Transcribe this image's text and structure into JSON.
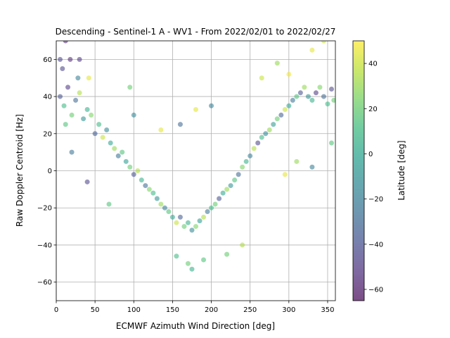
{
  "chart_data": {
    "type": "scatter",
    "title": "Descending - Sentinel-1 A - WV1 - From 2022/02/01 to 2022/02/27",
    "xlabel": "ECMWF Azimuth Wind Direction [deg]",
    "ylabel": "Raw Doppler Centroid [Hz]",
    "xlim": [
      0,
      360
    ],
    "ylim": [
      -70,
      70
    ],
    "xticks": [
      0,
      50,
      100,
      150,
      200,
      250,
      300,
      350
    ],
    "yticks": [
      -60,
      -40,
      -20,
      0,
      20,
      40,
      60
    ],
    "grid": true,
    "marker_alpha": 0.55,
    "colormap": "viridis",
    "colormap_stops": [
      "#440154",
      "#482878",
      "#3e4989",
      "#31688e",
      "#26828e",
      "#1f9e89",
      "#35b779",
      "#6ece58",
      "#b5de2b",
      "#fde725"
    ],
    "colorbar": {
      "label": "Latitude [deg]",
      "range": [
        -65,
        50
      ],
      "ticks": [
        -60,
        -40,
        -20,
        0,
        20,
        40
      ]
    },
    "series": [
      {
        "description_note": "",
        "points": [
          {
            "x": 5,
            "y": 40,
            "c": -40
          },
          {
            "x": 10,
            "y": 35,
            "c": 10
          },
          {
            "x": 15,
            "y": 45,
            "c": -50
          },
          {
            "x": 20,
            "y": 30,
            "c": 20
          },
          {
            "x": 25,
            "y": 38,
            "c": -30
          },
          {
            "x": 30,
            "y": 42,
            "c": 35
          },
          {
            "x": 35,
            "y": 28,
            "c": -10
          },
          {
            "x": 40,
            "y": 33,
            "c": 5
          },
          {
            "x": 8,
            "y": 55,
            "c": -45
          },
          {
            "x": 18,
            "y": 60,
            "c": -55
          },
          {
            "x": 12,
            "y": 25,
            "c": 15
          },
          {
            "x": 28,
            "y": 50,
            "c": -20
          },
          {
            "x": 45,
            "y": 30,
            "c": 25
          },
          {
            "x": 50,
            "y": 20,
            "c": -35
          },
          {
            "x": 55,
            "y": 25,
            "c": 10
          },
          {
            "x": 60,
            "y": 18,
            "c": 40
          },
          {
            "x": 65,
            "y": 22,
            "c": -15
          },
          {
            "x": 70,
            "y": 15,
            "c": 0
          },
          {
            "x": 75,
            "y": 12,
            "c": 30
          },
          {
            "x": 80,
            "y": 8,
            "c": -25
          },
          {
            "x": 85,
            "y": 10,
            "c": 15
          },
          {
            "x": 90,
            "y": 5,
            "c": -5
          },
          {
            "x": 95,
            "y": 2,
            "c": 20
          },
          {
            "x": 100,
            "y": -2,
            "c": -40
          },
          {
            "x": 105,
            "y": 0,
            "c": 35
          },
          {
            "x": 110,
            "y": -5,
            "c": 5
          },
          {
            "x": 115,
            "y": -8,
            "c": -30
          },
          {
            "x": 120,
            "y": -10,
            "c": 25
          },
          {
            "x": 125,
            "y": -12,
            "c": 10
          },
          {
            "x": 130,
            "y": -15,
            "c": -10
          },
          {
            "x": 135,
            "y": -18,
            "c": 30
          },
          {
            "x": 140,
            "y": -20,
            "c": -20
          },
          {
            "x": 145,
            "y": -22,
            "c": 15
          },
          {
            "x": 150,
            "y": -25,
            "c": 0
          },
          {
            "x": 155,
            "y": -28,
            "c": 40
          },
          {
            "x": 160,
            "y": -25,
            "c": -35
          },
          {
            "x": 165,
            "y": -30,
            "c": 20
          },
          {
            "x": 170,
            "y": -28,
            "c": 5
          },
          {
            "x": 175,
            "y": -32,
            "c": -15
          },
          {
            "x": 180,
            "y": -30,
            "c": 25
          },
          {
            "x": 185,
            "y": -27,
            "c": -5
          },
          {
            "x": 190,
            "y": -25,
            "c": 35
          },
          {
            "x": 195,
            "y": -22,
            "c": -25
          },
          {
            "x": 200,
            "y": -20,
            "c": 10
          },
          {
            "x": 205,
            "y": -18,
            "c": 20
          },
          {
            "x": 210,
            "y": -15,
            "c": -40
          },
          {
            "x": 215,
            "y": -12,
            "c": 0
          },
          {
            "x": 220,
            "y": -10,
            "c": 30
          },
          {
            "x": 225,
            "y": -8,
            "c": -10
          },
          {
            "x": 230,
            "y": -5,
            "c": 15
          },
          {
            "x": 235,
            "y": -2,
            "c": -30
          },
          {
            "x": 240,
            "y": 2,
            "c": 25
          },
          {
            "x": 245,
            "y": 5,
            "c": 5
          },
          {
            "x": 250,
            "y": 8,
            "c": -20
          },
          {
            "x": 255,
            "y": 12,
            "c": 35
          },
          {
            "x": 260,
            "y": 15,
            "c": -45
          },
          {
            "x": 265,
            "y": 18,
            "c": 10
          },
          {
            "x": 270,
            "y": 20,
            "c": -15
          },
          {
            "x": 275,
            "y": 22,
            "c": 30
          },
          {
            "x": 280,
            "y": 25,
            "c": -5
          },
          {
            "x": 285,
            "y": 28,
            "c": 20
          },
          {
            "x": 290,
            "y": 30,
            "c": -35
          },
          {
            "x": 295,
            "y": 33,
            "c": 40
          },
          {
            "x": 300,
            "y": 35,
            "c": 0
          },
          {
            "x": 305,
            "y": 38,
            "c": -25
          },
          {
            "x": 310,
            "y": 40,
            "c": 15
          },
          {
            "x": 315,
            "y": 42,
            "c": -40
          },
          {
            "x": 320,
            "y": 45,
            "c": 30
          },
          {
            "x": 325,
            "y": 40,
            "c": -10
          },
          {
            "x": 330,
            "y": 38,
            "c": 5
          },
          {
            "x": 335,
            "y": 42,
            "c": -50
          },
          {
            "x": 340,
            "y": 45,
            "c": 25
          },
          {
            "x": 345,
            "y": 40,
            "c": -30
          },
          {
            "x": 350,
            "y": 36,
            "c": 10
          },
          {
            "x": 355,
            "y": 44,
            "c": -45
          },
          {
            "x": 358,
            "y": 38,
            "c": 20
          },
          {
            "x": 12,
            "y": 70,
            "c": -55
          },
          {
            "x": 42,
            "y": 50,
            "c": 45
          },
          {
            "x": 330,
            "y": 65,
            "c": 45
          },
          {
            "x": 345,
            "y": 70,
            "c": 40
          },
          {
            "x": 300,
            "y": 52,
            "c": 48
          },
          {
            "x": 170,
            "y": -50,
            "c": 20
          },
          {
            "x": 175,
            "y": -53,
            "c": 5
          },
          {
            "x": 190,
            "y": -48,
            "c": 15
          },
          {
            "x": 155,
            "y": -46,
            "c": 10
          },
          {
            "x": 220,
            "y": -45,
            "c": 20
          },
          {
            "x": 40,
            "y": -6,
            "c": -45
          },
          {
            "x": 68,
            "y": -18,
            "c": 15
          },
          {
            "x": 240,
            "y": -40,
            "c": 35
          },
          {
            "x": 295,
            "y": -2,
            "c": 45
          },
          {
            "x": 310,
            "y": 5,
            "c": 30
          },
          {
            "x": 330,
            "y": 2,
            "c": -20
          },
          {
            "x": 180,
            "y": 33,
            "c": 45
          },
          {
            "x": 200,
            "y": 35,
            "c": -20
          },
          {
            "x": 160,
            "y": 25,
            "c": -30
          },
          {
            "x": 135,
            "y": 22,
            "c": 45
          },
          {
            "x": 20,
            "y": 10,
            "c": -25
          },
          {
            "x": 5,
            "y": 60,
            "c": -45
          },
          {
            "x": 30,
            "y": 60,
            "c": -50
          },
          {
            "x": 95,
            "y": 45,
            "c": 20
          },
          {
            "x": 100,
            "y": 30,
            "c": -15
          },
          {
            "x": 285,
            "y": 58,
            "c": 30
          },
          {
            "x": 265,
            "y": 50,
            "c": 40
          },
          {
            "x": 355,
            "y": 15,
            "c": 15
          }
        ]
      }
    ]
  }
}
